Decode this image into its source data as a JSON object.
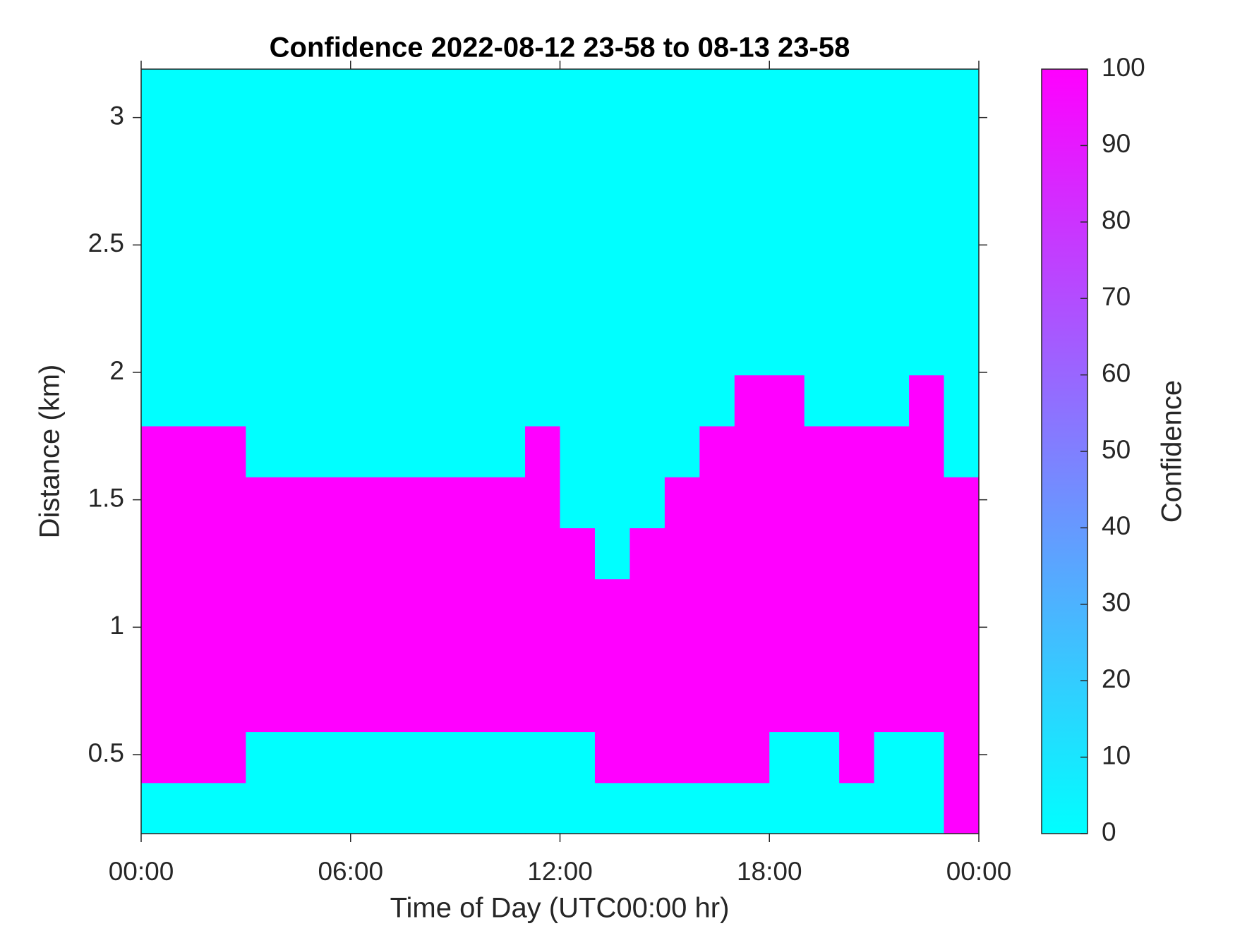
{
  "chart_data": {
    "type": "heatmap",
    "title": "Confidence 2022-08-12 23-58 to 08-13 23-58",
    "x_label": "Time of Day (UTC00:00 hr)",
    "y_label": "Distance (km)",
    "colorbar_label": "Confidence",
    "colormap": [
      "#00ffff",
      "#ff00ff"
    ],
    "x": [
      0,
      1,
      2,
      3,
      4,
      5,
      6,
      7,
      8,
      9,
      10,
      11,
      12,
      13,
      14,
      15,
      16,
      17,
      18,
      19,
      20,
      21,
      22,
      23,
      24
    ],
    "y": [
      0.19,
      0.39,
      0.59,
      0.79,
      0.99,
      1.19,
      1.39,
      1.59,
      1.79,
      1.99,
      2.19,
      2.39,
      2.59,
      2.79,
      2.99,
      3.19
    ],
    "z": [
      [
        0,
        100,
        100,
        100,
        100,
        100,
        100,
        100,
        0,
        0,
        0,
        0,
        0,
        0,
        0
      ],
      [
        0,
        100,
        100,
        100,
        100,
        100,
        100,
        100,
        0,
        0,
        0,
        0,
        0,
        0,
        0
      ],
      [
        0,
        100,
        100,
        100,
        100,
        100,
        100,
        100,
        0,
        0,
        0,
        0,
        0,
        0,
        0
      ],
      [
        0,
        0,
        100,
        100,
        100,
        100,
        100,
        0,
        0,
        0,
        0,
        0,
        0,
        0,
        0
      ],
      [
        0,
        0,
        100,
        100,
        100,
        100,
        100,
        0,
        0,
        0,
        0,
        0,
        0,
        0,
        0
      ],
      [
        0,
        0,
        100,
        100,
        100,
        100,
        100,
        0,
        0,
        0,
        0,
        0,
        0,
        0,
        0
      ],
      [
        0,
        0,
        100,
        100,
        100,
        100,
        100,
        0,
        0,
        0,
        0,
        0,
        0,
        0,
        0
      ],
      [
        0,
        0,
        100,
        100,
        100,
        100,
        100,
        0,
        0,
        0,
        0,
        0,
        0,
        0,
        0
      ],
      [
        0,
        0,
        100,
        100,
        100,
        100,
        100,
        0,
        0,
        0,
        0,
        0,
        0,
        0,
        0
      ],
      [
        0,
        0,
        100,
        100,
        100,
        100,
        100,
        0,
        0,
        0,
        0,
        0,
        0,
        0,
        0
      ],
      [
        0,
        0,
        100,
        100,
        100,
        100,
        100,
        0,
        0,
        0,
        0,
        0,
        0,
        0,
        0
      ],
      [
        0,
        0,
        100,
        100,
        100,
        100,
        100,
        100,
        0,
        0,
        0,
        0,
        0,
        0,
        0
      ],
      [
        0,
        0,
        100,
        100,
        100,
        100,
        0,
        0,
        0,
        0,
        0,
        0,
        0,
        0,
        0
      ],
      [
        0,
        100,
        100,
        100,
        100,
        0,
        0,
        0,
        0,
        0,
        0,
        0,
        0,
        0,
        0
      ],
      [
        0,
        100,
        100,
        100,
        100,
        100,
        0,
        0,
        0,
        0,
        0,
        0,
        0,
        0,
        0
      ],
      [
        0,
        100,
        100,
        100,
        100,
        100,
        100,
        0,
        0,
        0,
        0,
        0,
        0,
        0,
        0
      ],
      [
        0,
        100,
        100,
        100,
        100,
        100,
        100,
        100,
        0,
        0,
        0,
        0,
        0,
        0,
        0
      ],
      [
        0,
        100,
        100,
        100,
        100,
        100,
        100,
        100,
        100,
        0,
        0,
        0,
        0,
        0,
        0
      ],
      [
        0,
        0,
        100,
        100,
        100,
        100,
        100,
        100,
        100,
        0,
        0,
        0,
        0,
        0,
        0
      ],
      [
        0,
        0,
        100,
        100,
        100,
        100,
        100,
        100,
        0,
        0,
        0,
        0,
        0,
        0,
        0
      ],
      [
        0,
        100,
        100,
        100,
        100,
        100,
        100,
        100,
        0,
        0,
        0,
        0,
        0,
        0,
        0
      ],
      [
        0,
        0,
        100,
        100,
        100,
        100,
        100,
        100,
        0,
        0,
        0,
        0,
        0,
        0,
        0
      ],
      [
        0,
        0,
        100,
        100,
        100,
        100,
        100,
        100,
        100,
        0,
        0,
        0,
        0,
        0,
        0
      ],
      [
        100,
        100,
        100,
        100,
        100,
        100,
        100,
        0,
        0,
        0,
        0,
        0,
        0,
        0,
        0
      ]
    ],
    "xlim": [
      0,
      24
    ],
    "xticks": [
      {
        "value": 0,
        "label": "00:00"
      },
      {
        "value": 6,
        "label": "06:00"
      },
      {
        "value": 12,
        "label": "12:00"
      },
      {
        "value": 18,
        "label": "18:00"
      },
      {
        "value": 24,
        "label": "00:00"
      }
    ],
    "ylim": [
      0.19,
      3.19
    ],
    "yticks": [
      0.5,
      1,
      1.5,
      2,
      2.5,
      3
    ],
    "clim": [
      0,
      100
    ],
    "cticks": [
      0,
      10,
      20,
      30,
      40,
      50,
      60,
      70,
      80,
      90,
      100
    ]
  }
}
